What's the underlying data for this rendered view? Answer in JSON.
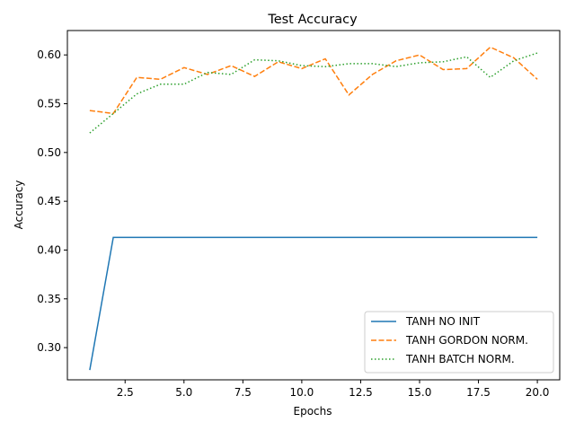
{
  "chart_data": {
    "type": "line",
    "title": "Test Accuracy",
    "xlabel": "Epochs",
    "ylabel": "Accuracy",
    "xlim": [
      0.05,
      20.95
    ],
    "ylim": [
      0.267,
      0.625
    ],
    "xticks": [
      2.5,
      5.0,
      7.5,
      10.0,
      12.5,
      15.0,
      17.5,
      20.0
    ],
    "xtick_labels": [
      "2.5",
      "5.0",
      "7.5",
      "10.0",
      "12.5",
      "15.0",
      "17.5",
      "20.0"
    ],
    "yticks": [
      0.3,
      0.35,
      0.4,
      0.45,
      0.5,
      0.55,
      0.6
    ],
    "ytick_labels": [
      "0.30",
      "0.35",
      "0.40",
      "0.45",
      "0.50",
      "0.55",
      "0.60"
    ],
    "grid": false,
    "legend_position": "lower-right",
    "x": [
      1,
      2,
      3,
      4,
      5,
      6,
      7,
      8,
      9,
      10,
      11,
      12,
      13,
      14,
      15,
      16,
      17,
      18,
      19,
      20
    ],
    "series": [
      {
        "name": "TANH NO INIT",
        "color": "#1f77b4",
        "style": "solid",
        "values": [
          0.277,
          0.413,
          0.413,
          0.413,
          0.413,
          0.413,
          0.413,
          0.413,
          0.413,
          0.413,
          0.413,
          0.413,
          0.413,
          0.413,
          0.413,
          0.413,
          0.413,
          0.413,
          0.413,
          0.413
        ]
      },
      {
        "name": "TANH GORDON NORM.",
        "color": "#ff7f0e",
        "style": "dashed",
        "values": [
          0.543,
          0.54,
          0.577,
          0.575,
          0.587,
          0.58,
          0.589,
          0.578,
          0.593,
          0.586,
          0.596,
          0.559,
          0.58,
          0.594,
          0.6,
          0.585,
          0.586,
          0.608,
          0.597,
          0.575
        ]
      },
      {
        "name": "TANH BATCH NORM.",
        "color": "#2ca02c",
        "style": "dotted",
        "values": [
          0.52,
          0.54,
          0.56,
          0.57,
          0.57,
          0.582,
          0.58,
          0.595,
          0.594,
          0.589,
          0.588,
          0.591,
          0.591,
          0.588,
          0.592,
          0.593,
          0.598,
          0.577,
          0.594,
          0.602
        ]
      }
    ]
  }
}
